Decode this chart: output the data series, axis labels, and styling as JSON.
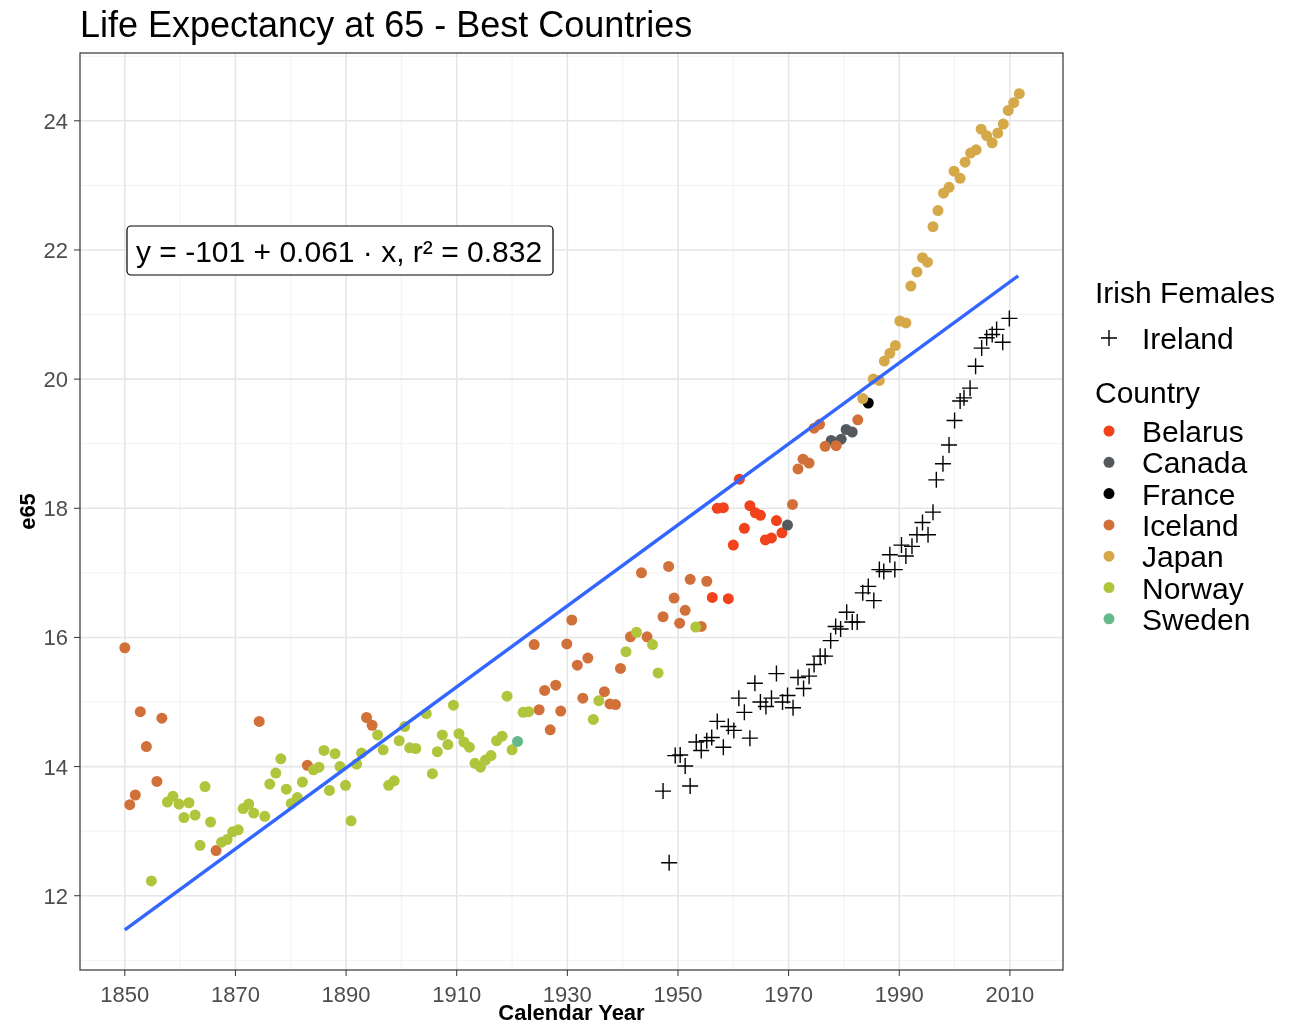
{
  "chart_data": {
    "type": "scatter",
    "title": "Life Expectancy at 65 - Best Countries",
    "xlabel": "Calendar Year",
    "ylabel": "e65",
    "legend_title": "Country",
    "legend": "right",
    "grid": true,
    "xlim": [
      1841.9,
      2019.6
    ],
    "ylim": [
      10.85,
      25.05
    ],
    "xticks": [
      1850,
      1870,
      1890,
      1910,
      1930,
      1950,
      1970,
      1990,
      2010
    ],
    "yticks": [
      12,
      14,
      16,
      18,
      20,
      22,
      24
    ],
    "annotations": [
      "y = -101 + 0.061 · x,  r² = 0.832",
      "Irish Females"
    ],
    "series": [
      {
        "name": "Ireland",
        "color": "#000000",
        "marker": "cross",
        "x": [
          1947.3,
          1948.4,
          1949.5,
          1950.4,
          1951.3,
          1952.2,
          1953.3,
          1954.2,
          1955.2,
          1956.1,
          1957.1,
          1958.2,
          1959.1,
          1960.1,
          1961,
          1962,
          1963,
          1963.9,
          1964.9,
          1965.9,
          1966.9,
          1967.8,
          1968.9,
          1969.8,
          1970.8,
          1971.7,
          1972.7,
          1973.7,
          1974.6,
          1975.7,
          1976.6,
          1977.6,
          1978.5,
          1979.4,
          1980.5,
          1981.5,
          1982.4,
          1983.4,
          1984.4,
          1985.4,
          1986.4,
          1987.2,
          1988.3,
          1989.2,
          1990.4,
          1991.2,
          1992.3,
          1993.2,
          1994.2,
          1995.2,
          1996.1,
          1996.7,
          1997.9,
          1999,
          2000,
          2001,
          2001.7,
          2002.8,
          2003.8,
          2004.9,
          2005.8,
          2006.8,
          2007.6,
          2008.7,
          2009.9
        ],
        "values": [
          13.62,
          12.51,
          14.17,
          14.18,
          14.01,
          13.7,
          14.38,
          14.25,
          14.4,
          14.45,
          14.7,
          14.3,
          14.62,
          14.56,
          15.06,
          14.84,
          14.44,
          15.29,
          15,
          14.93,
          15.06,
          15.44,
          15,
          15.1,
          14.91,
          15.38,
          15.21,
          15.4,
          15.58,
          15.71,
          15.71,
          15.95,
          16.17,
          16.13,
          16.39,
          16.24,
          16.24,
          16.69,
          16.79,
          16.57,
          17.05,
          17.02,
          17.28,
          17.05,
          17.43,
          17.26,
          17.41,
          17.59,
          17.78,
          17.59,
          17.94,
          18.44,
          18.69,
          18.98,
          19.36,
          19.66,
          19.71,
          19.86,
          20.2,
          20.48,
          20.64,
          20.69,
          20.77,
          20.57,
          20.94
        ]
      },
      {
        "name": "Belarus",
        "color": "#f2421c",
        "marker": "circle",
        "x": [
          1956.2,
          1957.1,
          1958.2,
          1959.1,
          1960,
          1961.1,
          1962,
          1963,
          1964,
          1964.9,
          1965.8,
          1966.9,
          1967.8,
          1968.8
        ],
        "values": [
          16.62,
          18,
          18.01,
          16.6,
          17.43,
          18.45,
          17.69,
          18.04,
          17.93,
          17.89,
          17.51,
          17.54,
          17.81,
          17.62
        ]
      },
      {
        "name": "Canada",
        "color": "#54595d",
        "marker": "circle",
        "x": [
          1969.8,
          1977.7,
          1979.5,
          1980.4,
          1981.5
        ],
        "values": [
          17.74,
          19.05,
          19.07,
          19.22,
          19.18
        ]
      },
      {
        "name": "France",
        "color": "#000000",
        "marker": "circle",
        "x": [
          1984.4
        ],
        "values": [
          19.63
        ]
      },
      {
        "name": "Iceland",
        "color": "#d2703a",
        "marker": "circle",
        "x": [
          1850,
          1850.9,
          1851.9,
          1852.8,
          1853.9,
          1855.8,
          1856.7,
          1866.5,
          1874.3,
          1883,
          1893.7,
          1894.7,
          1924,
          1924.9,
          1925.9,
          1926.9,
          1927.9,
          1928.8,
          1929.9,
          1930.8,
          1931.8,
          1932.8,
          1933.7,
          1936.7,
          1937.7,
          1938.7,
          1939.6,
          1941.4,
          1943.4,
          1944.4,
          1947.3,
          1948.3,
          1949.3,
          1950.3,
          1951.3,
          1952.2,
          1954.2,
          1955.2,
          1970.7,
          1971.7,
          1972.6,
          1973.7,
          1974.6,
          1975.6,
          1976.6,
          1978.6,
          1982.5
        ],
        "values": [
          15.84,
          13.41,
          13.56,
          14.85,
          14.31,
          13.77,
          14.75,
          12.7,
          14.7,
          14.02,
          14.76,
          14.64,
          15.89,
          14.88,
          15.18,
          14.57,
          15.26,
          14.86,
          15.9,
          16.27,
          15.57,
          15.06,
          15.68,
          15.16,
          14.97,
          14.96,
          15.52,
          16.01,
          17,
          16.01,
          16.32,
          17.1,
          16.61,
          16.22,
          16.42,
          16.9,
          16.17,
          16.87,
          18.06,
          18.61,
          18.76,
          18.7,
          19.24,
          19.3,
          18.96,
          18.97,
          19.37
        ]
      },
      {
        "name": "Japan",
        "color": "#d5a84a",
        "marker": "circle",
        "x": [
          1983.4,
          1985.3,
          1986.4,
          1987.3,
          1988.3,
          1989.3,
          1990.1,
          1991.2,
          1992.1,
          1993.2,
          1994.2,
          1995.1,
          1996.1,
          1997,
          1998,
          1999,
          1999.9,
          2001,
          2001.9,
          2002.9,
          2003.9,
          2004.8,
          2005.8,
          2006.8,
          2007.8,
          2008.8,
          2009.7,
          2010.7,
          2011.7
        ],
        "values": [
          19.7,
          20,
          19.98,
          20.28,
          20.4,
          20.52,
          20.9,
          20.87,
          21.44,
          21.66,
          21.88,
          21.81,
          22.36,
          22.61,
          22.88,
          22.97,
          23.22,
          23.11,
          23.36,
          23.5,
          23.55,
          23.87,
          23.77,
          23.66,
          23.81,
          23.95,
          24.16,
          24.28,
          24.42
        ]
      },
      {
        "name": "Norway",
        "color": "#b0c43c",
        "marker": "circle",
        "x": [
          1854.8,
          1857.7,
          1858.7,
          1859.8,
          1860.7,
          1861.6,
          1862.7,
          1863.6,
          1864.5,
          1865.5,
          1867.5,
          1868.5,
          1869.5,
          1870.5,
          1871.4,
          1872.4,
          1873.3,
          1875.3,
          1876.2,
          1877.3,
          1878.2,
          1879.2,
          1880.1,
          1881.2,
          1882.1,
          1884.1,
          1885.1,
          1886,
          1887,
          1888,
          1888.9,
          1889.9,
          1890.9,
          1891.9,
          1892.8,
          1895.7,
          1896.7,
          1897.7,
          1898.7,
          1899.6,
          1900.6,
          1901.5,
          1902.6,
          1904.5,
          1905.6,
          1906.5,
          1907.4,
          1908.4,
          1909.4,
          1910.4,
          1911.3,
          1912.3,
          1913.3,
          1914.3,
          1915.2,
          1916.2,
          1917.2,
          1918.2,
          1919.1,
          1920,
          1922,
          1923,
          1934.7,
          1935.7,
          1940.6,
          1942.5,
          1945.4,
          1946.4,
          1953.2
        ],
        "values": [
          12.23,
          13.45,
          13.54,
          13.42,
          13.21,
          13.44,
          13.25,
          12.78,
          13.69,
          13.14,
          12.83,
          12.87,
          12.99,
          13.02,
          13.35,
          13.42,
          13.28,
          13.23,
          13.73,
          13.9,
          14.12,
          13.65,
          13.43,
          13.52,
          13.76,
          13.95,
          13.99,
          14.25,
          13.63,
          14.2,
          14,
          13.71,
          13.16,
          14.04,
          14.21,
          14.49,
          14.26,
          13.71,
          13.78,
          14.4,
          14.62,
          14.29,
          14.28,
          14.82,
          13.89,
          14.23,
          14.49,
          14.34,
          14.95,
          14.51,
          14.38,
          14.3,
          14.05,
          13.99,
          14.1,
          14.17,
          14.4,
          14.47,
          15.09,
          14.26,
          14.84,
          14.85,
          14.73,
          15.02,
          15.78,
          16.08,
          15.89,
          15.45,
          16.16
        ]
      },
      {
        "name": "Sweden",
        "color": "#63b98b",
        "marker": "circle",
        "x": [
          1921
        ],
        "values": [
          14.39
        ]
      },
      {
        "type": "line",
        "color": "#3366ff",
        "x": [
          1850,
          2011.5
        ],
        "values": [
          11.47,
          21.6
        ]
      }
    ]
  }
}
